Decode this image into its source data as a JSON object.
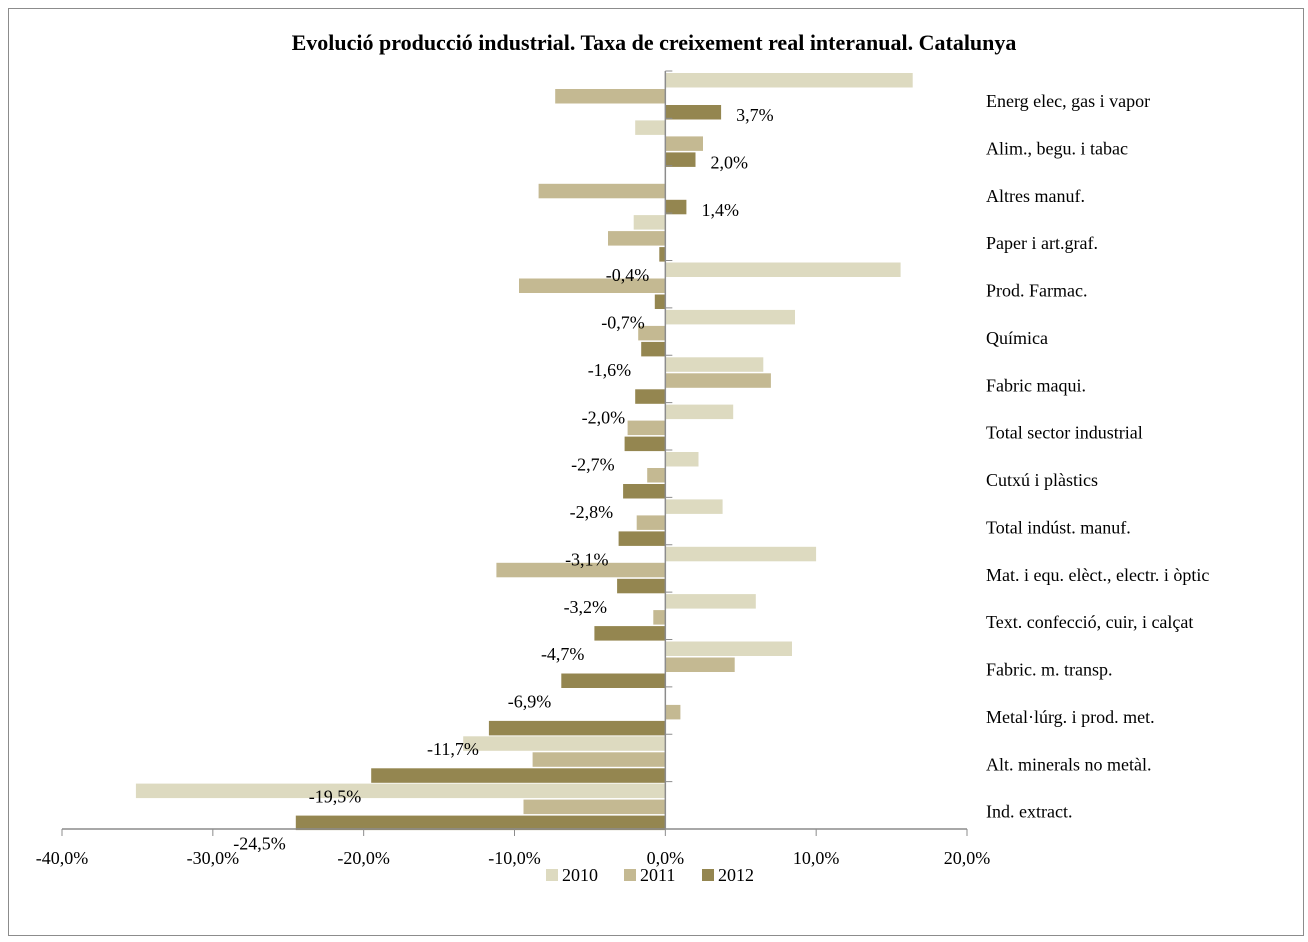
{
  "colors": {
    "2010": "#dddac0",
    "2011": "#c4b992",
    "2012": "#948650",
    "axis": "#8c8c8c"
  },
  "chart_data": {
    "type": "bar",
    "orientation": "horizontal",
    "title": "Evolució producció industrial. Taxa de creixement real interanual. Catalunya",
    "xlabel": "",
    "ylabel": "",
    "xlim": [
      -40,
      20
    ],
    "x_ticks": [
      "-40,0%",
      "-30,0%",
      "-20,0%",
      "-10,0%",
      "0,0%",
      "10,0%",
      "20,0%"
    ],
    "grid": false,
    "legend_position": "bottom",
    "categories": [
      "Energ elec, gas i vapor",
      "Alim., begu. i tabac",
      "Altres manuf.",
      "Paper i art.graf.",
      "Prod. Farmac.",
      "Química",
      "Fabric maqui.",
      "Total sector industrial",
      "Cutxú i plàstics",
      "Total indúst. manuf.",
      "Mat. i equ. elèct., electr. i òptic",
      "Text. confecció, cuir, i calçat",
      "Fabric. m. transp.",
      "Metal·lúrg. i prod. met.",
      "Alt. minerals no metàl.",
      "Ind. extract."
    ],
    "series": [
      {
        "name": "2010",
        "values": [
          16.4,
          -2.0,
          0.0,
          -2.1,
          15.6,
          8.6,
          6.5,
          4.5,
          2.2,
          3.8,
          10.0,
          6.0,
          8.4,
          0.0,
          -13.4,
          -35.1
        ]
      },
      {
        "name": "2011",
        "values": [
          -7.3,
          2.5,
          -8.4,
          -3.8,
          -9.7,
          -1.8,
          7.0,
          -2.5,
          -1.2,
          -1.9,
          -11.2,
          -0.8,
          4.6,
          1.0,
          -8.8,
          -9.4
        ]
      },
      {
        "name": "2012",
        "values": [
          3.7,
          2.0,
          1.4,
          -0.4,
          -0.7,
          -1.6,
          -2.0,
          -2.7,
          -2.8,
          -3.1,
          -3.2,
          -4.7,
          -6.9,
          -11.7,
          -19.5,
          -24.5
        ]
      }
    ],
    "data_labels": [
      "3,7%",
      "2,0%",
      "1,4%",
      "-0,4%",
      "-0,7%",
      "-1,6%",
      "-2,0%",
      "-2,7%",
      "-2,8%",
      "-3,1%",
      "-3,2%",
      "-4,7%",
      "-6,9%",
      "-11,7%",
      "-19,5%",
      "-24,5%"
    ]
  }
}
